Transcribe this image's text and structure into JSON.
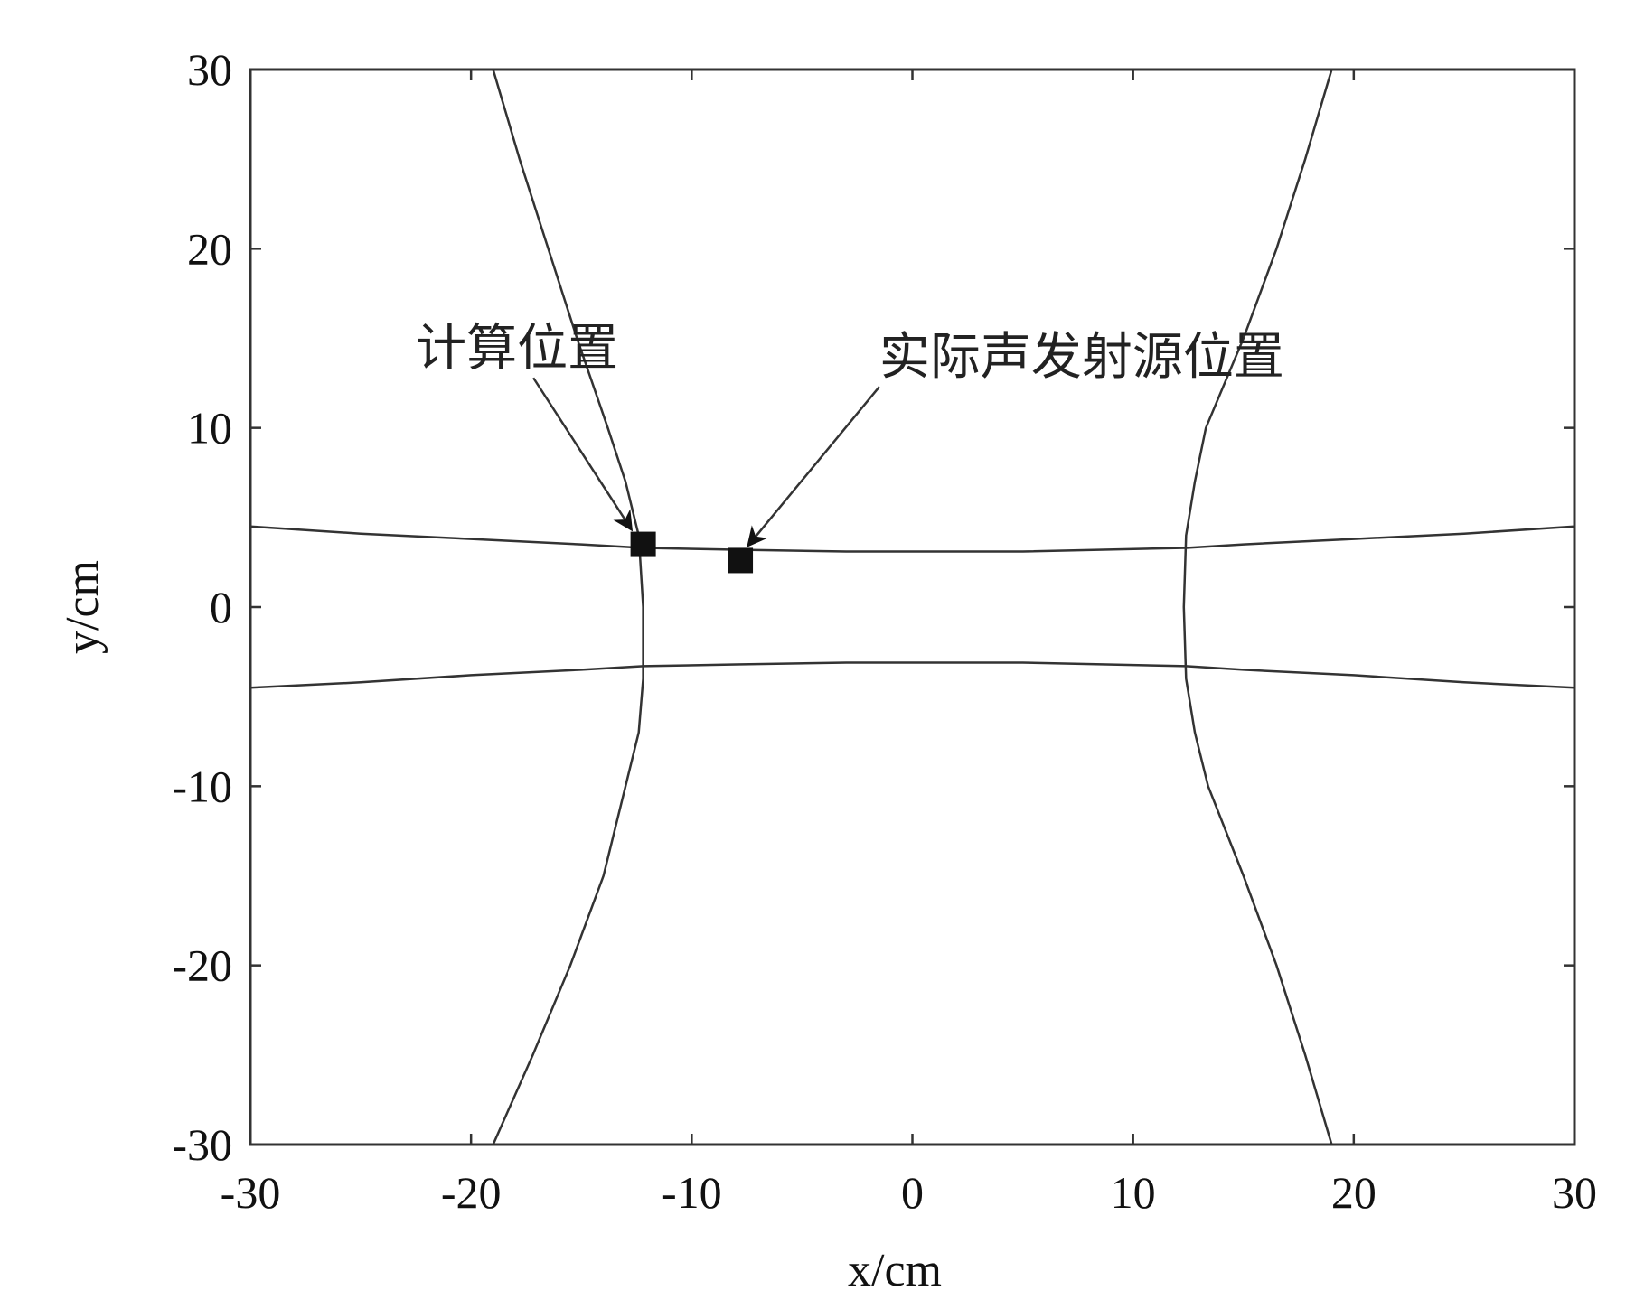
{
  "chart_data": {
    "type": "line",
    "title": "",
    "xlabel": "x/cm",
    "ylabel": "y/cm",
    "xlim": [
      -30,
      30
    ],
    "ylim": [
      -30,
      30
    ],
    "xticks": [
      -30,
      -20,
      -10,
      0,
      10,
      20,
      30
    ],
    "yticks": [
      -30,
      -20,
      -10,
      0,
      10,
      20,
      30
    ],
    "grid": false,
    "series": [
      {
        "key": "left-hyperbola",
        "color": "#333333",
        "x": [
          -19.0,
          -17.8,
          -16.5,
          -15.2,
          -13.8,
          -13.0,
          -12.4,
          -12.2,
          -12.2,
          -12.4,
          -13.0,
          -14.0,
          -15.5,
          -17.2,
          -19.0
        ],
        "y": [
          30,
          25,
          20,
          15,
          10,
          7,
          4,
          0,
          -4,
          -7,
          -10,
          -15,
          -20,
          -25,
          -30
        ]
      },
      {
        "key": "right-hyperbola",
        "color": "#333333",
        "x": [
          19.0,
          17.8,
          16.5,
          15.0,
          13.3,
          12.8,
          12.4,
          12.3,
          12.4,
          12.8,
          13.4,
          15.0,
          16.5,
          17.8,
          19.0
        ],
        "y": [
          30,
          25,
          20,
          15,
          10,
          7,
          4,
          0,
          -4,
          -7,
          -10,
          -15,
          -20,
          -25,
          -30
        ]
      },
      {
        "key": "upper-line",
        "color": "#333333",
        "x": [
          -30,
          -25,
          -20,
          -15,
          -12.2,
          -8,
          -3,
          5,
          12.4,
          15,
          20,
          25,
          30
        ],
        "y": [
          4.5,
          4.1,
          3.8,
          3.5,
          3.3,
          3.2,
          3.1,
          3.1,
          3.3,
          3.5,
          3.8,
          4.1,
          4.5
        ]
      },
      {
        "key": "lower-line",
        "color": "#333333",
        "x": [
          -30,
          -25,
          -20,
          -15,
          -12.2,
          -8,
          -3,
          5,
          12.4,
          15,
          20,
          25,
          30
        ],
        "y": [
          -4.5,
          -4.2,
          -3.8,
          -3.5,
          -3.3,
          -3.2,
          -3.1,
          -3.1,
          -3.3,
          -3.5,
          -3.8,
          -4.2,
          -4.5
        ]
      }
    ],
    "points": [
      {
        "key": "computed",
        "x": -12.2,
        "y": 3.5
      },
      {
        "key": "actual",
        "x": -7.8,
        "y": 2.6
      }
    ],
    "annotations": [
      {
        "key": "computed-label",
        "text": "计算位置",
        "tx": -22.5,
        "ty": 13.5,
        "target": [
          -12.2,
          3.5
        ]
      },
      {
        "key": "actual-label",
        "text": "实际声发射源位置",
        "tx": -1.5,
        "ty": 13.0,
        "target": [
          -7.8,
          2.6
        ]
      }
    ]
  }
}
